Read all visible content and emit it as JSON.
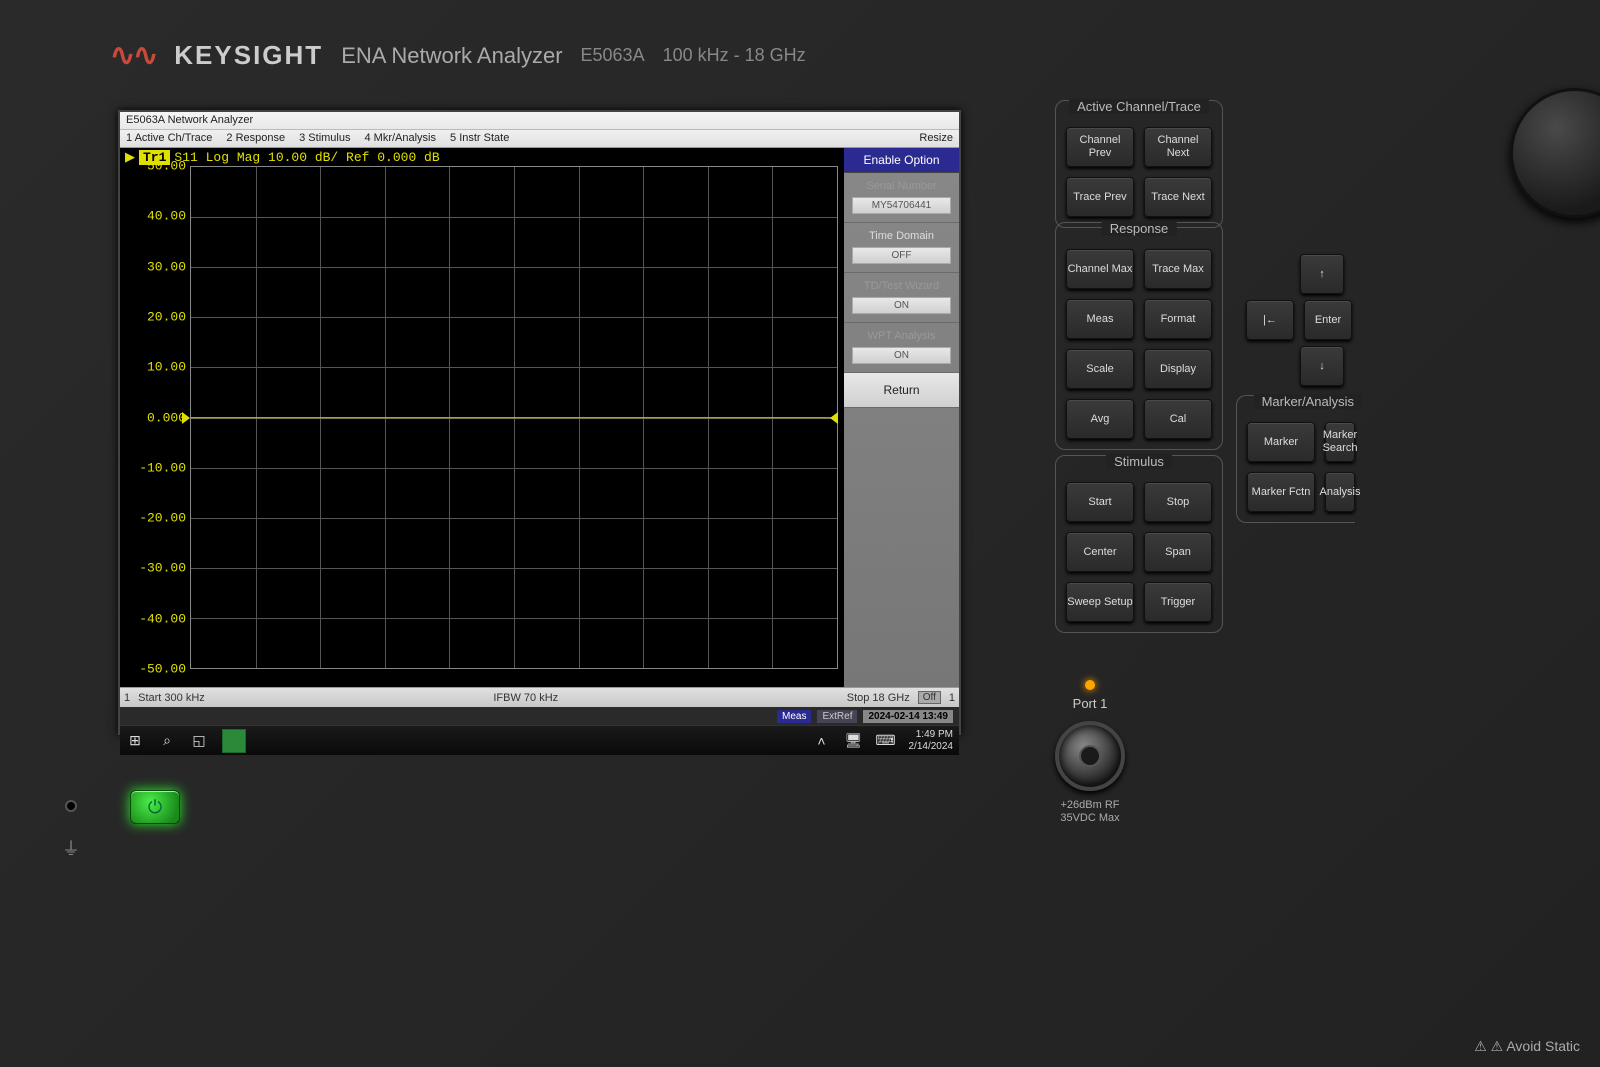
{
  "brand": {
    "logo": "∿∿",
    "name": "KEYSIGHT",
    "model_line": "ENA Network Analyzer",
    "model": "E5063A",
    "freq_range": "100 kHz - 18 GHz"
  },
  "screen": {
    "title": "E5063A Network Analyzer",
    "menu": {
      "m1": "1 Active Ch/Trace",
      "m2": "2 Response",
      "m3": "3 Stimulus",
      "m4": "4 Mkr/Analysis",
      "m5": "5 Instr State",
      "resize": "Resize"
    },
    "trace": {
      "tag": "Tr1",
      "desc": "S11 Log Mag 10.00 dB/ Ref 0.000 dB"
    },
    "chart": {
      "type": "line",
      "ylim": [
        -50,
        50
      ],
      "ytick_step": 10,
      "ref_value": 0.0,
      "ref_label": "0.000",
      "y_labels": [
        "50.00",
        "40.00",
        "30.00",
        "20.00",
        "10.00",
        "0.000",
        "-10.00",
        "-20.00",
        "-30.00",
        "-40.00",
        "-50.00"
      ],
      "x_divisions": 10,
      "trace_color": "#e0e000",
      "grid_color": "#555555",
      "border_color": "#888888",
      "background_color": "#000000",
      "trace_y_value": 0.0
    },
    "status": {
      "ch": "1",
      "start": "Start 300 kHz",
      "ifbw": "IFBW 70 kHz",
      "stop": "Stop 18 GHz",
      "off": "Off",
      "one": "1"
    },
    "status2": {
      "meas": "Meas",
      "extref": "ExtRef",
      "datetime": "2024-02-14 13:49"
    },
    "sidepanel": {
      "header": "Enable Option",
      "items": [
        {
          "label": "Serial Number",
          "value": "MY54706441",
          "dim": true
        },
        {
          "label": "Time Domain",
          "value": "OFF",
          "dim": false
        },
        {
          "label": "TD/Test Wizard",
          "value": "ON",
          "dim": true
        },
        {
          "label": "WPT Analysis",
          "value": "ON",
          "dim": true
        }
      ],
      "return": "Return"
    },
    "taskbar": {
      "time": "1:49 PM",
      "date": "2/14/2024"
    }
  },
  "hw": {
    "active_channel_trace": {
      "title": "Active Channel/Trace",
      "ch_prev": "Channel\nPrev",
      "ch_next": "Channel\nNext",
      "tr_prev": "Trace\nPrev",
      "tr_next": "Trace\nNext"
    },
    "response": {
      "title": "Response",
      "ch_max": "Channel\nMax",
      "tr_max": "Trace\nMax",
      "meas": "Meas",
      "format": "Format",
      "scale": "Scale",
      "display": "Display",
      "avg": "Avg",
      "cal": "Cal"
    },
    "stimulus": {
      "title": "Stimulus",
      "start": "Start",
      "stop": "Stop",
      "center": "Center",
      "span": "Span",
      "sweep": "Sweep\nSetup",
      "trigger": "Trigger"
    },
    "marker_analysis": {
      "title": "Marker/Analysis",
      "marker": "Marker",
      "marker_se": "Marker\nSearch",
      "marker_fctn": "Marker\nFctn",
      "analysis": "Analysis"
    },
    "nav": {
      "back": "|←",
      "enter": "Enter",
      "up": "↑",
      "down": "↓"
    },
    "port1": {
      "label": "Port 1",
      "spec1": "+26dBm RF",
      "spec2": "35VDC Max"
    },
    "power_glyph": "⏻",
    "gnd_glyph": "⏚",
    "warning": "⚠ ⚠ Avoid Static"
  }
}
